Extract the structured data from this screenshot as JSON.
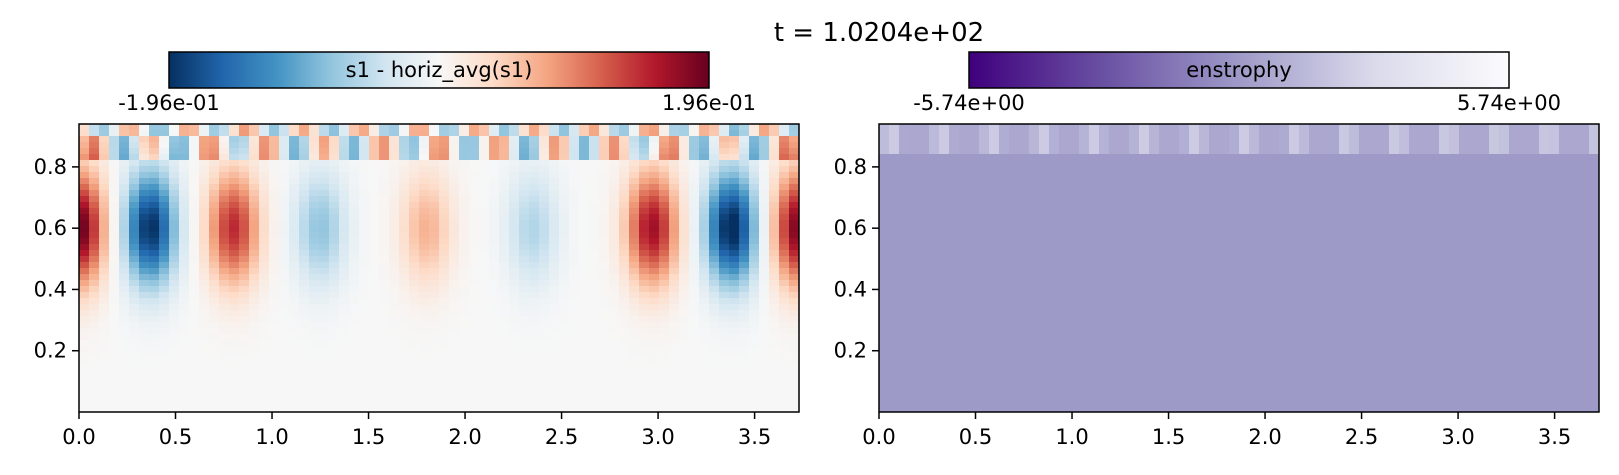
{
  "figure": {
    "suptitle": "t = 1.0204e+02"
  },
  "chart_data": [
    {
      "type": "heatmap",
      "colorbar_label": "s1 - horiz_avg(s1)",
      "colorbar_min_label": "-1.96e-01",
      "colorbar_max_label": "1.96e-01",
      "vmin": -0.196,
      "vmax": 0.196,
      "colormap": "RdBu_r",
      "xlim": [
        0,
        3.73
      ],
      "ylim": [
        0,
        0.94
      ],
      "xticks": [
        "0.0",
        "0.5",
        "1.0",
        "1.5",
        "2.0",
        "2.5",
        "3.0",
        "3.5"
      ],
      "yticks": [
        "0.2",
        "0.4",
        "0.6",
        "0.8"
      ]
    },
    {
      "type": "heatmap",
      "colorbar_label": "enstrophy",
      "colorbar_min_label": "-5.74e+00",
      "colorbar_max_label": "5.74e+00",
      "vmin": -5.74,
      "vmax": 5.74,
      "colormap": "Purples_r",
      "xlim": [
        0,
        3.73
      ],
      "ylim": [
        0,
        0.94
      ],
      "xticks": [
        "0.0",
        "0.5",
        "1.0",
        "1.5",
        "2.0",
        "2.5",
        "3.0",
        "3.5"
      ],
      "yticks": [
        "0.2",
        "0.4",
        "0.6",
        "0.8"
      ]
    }
  ]
}
